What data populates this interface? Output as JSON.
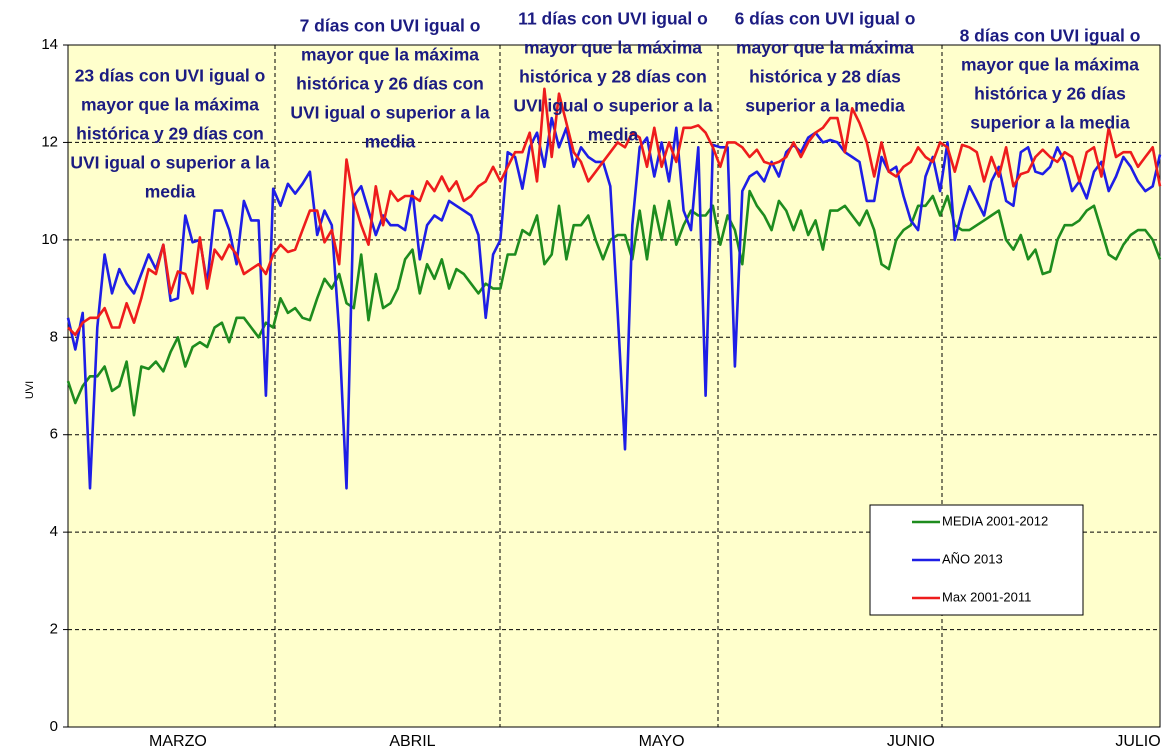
{
  "chart_data": {
    "type": "line",
    "y_label": "UVI",
    "ylim": [
      0,
      14
    ],
    "yticks": [
      0,
      2,
      4,
      6,
      8,
      10,
      12,
      14
    ],
    "grid": true,
    "categories": [
      null,
      null,
      null,
      null,
      null,
      null,
      null,
      null,
      null,
      null,
      null,
      null,
      null,
      null,
      null,
      "MARZO",
      null,
      null,
      null,
      null,
      null,
      null,
      null,
      null,
      null,
      null,
      null,
      null,
      null,
      null,
      null,
      null,
      null,
      null,
      null,
      null,
      null,
      null,
      null,
      null,
      null,
      null,
      null,
      null,
      null,
      null,
      null,
      "ABRIL",
      null,
      null,
      null,
      null,
      null,
      null,
      null,
      null,
      null,
      null,
      null,
      null,
      null,
      null,
      null,
      null,
      null,
      null,
      null,
      null,
      null,
      null,
      null,
      null,
      null,
      null,
      null,
      null,
      null,
      null,
      null,
      null,
      null,
      "MAYO",
      null,
      null,
      null,
      null,
      null,
      null,
      null,
      null,
      null,
      null,
      null,
      null,
      null,
      null,
      null,
      null,
      null,
      null,
      null,
      null,
      null,
      null,
      null,
      null,
      null,
      null,
      null,
      null,
      null,
      null,
      null,
      null,
      null,
      "JUNIO",
      null,
      null,
      null,
      null,
      null,
      null,
      null,
      null,
      null,
      null,
      null,
      null,
      null,
      null,
      null,
      null,
      null,
      null,
      null,
      null,
      null,
      null,
      null,
      null,
      null,
      null,
      null,
      null,
      null,
      null,
      "JULIO",
      null,
      null,
      null
    ],
    "series": [
      {
        "name": "MEDIA 2001-2012",
        "color": "#1e8c1e",
        "values": [
          7.1,
          6.65,
          7.0,
          7.2,
          7.2,
          7.4,
          6.9,
          7.0,
          7.5,
          6.4,
          7.4,
          7.35,
          7.5,
          7.3,
          7.7,
          8.0,
          7.4,
          7.8,
          7.9,
          7.8,
          8.2,
          8.3,
          7.9,
          8.4,
          8.4,
          8.2,
          8.0,
          8.3,
          8.2,
          8.8,
          8.5,
          8.6,
          8.4,
          8.35,
          8.8,
          9.2,
          9.0,
          9.3,
          8.7,
          8.6,
          9.7,
          8.35,
          9.3,
          8.6,
          8.7,
          9.0,
          9.6,
          9.8,
          8.9,
          9.5,
          9.2,
          9.6,
          9.0,
          9.4,
          9.3,
          9.1,
          8.9,
          9.1,
          9.0,
          9.0,
          9.7,
          9.7,
          10.2,
          10.1,
          10.5,
          9.5,
          9.7,
          10.7,
          9.6,
          10.3,
          10.3,
          10.5,
          10.0,
          9.6,
          10.0,
          10.1,
          10.1,
          9.6,
          10.6,
          9.6,
          10.7,
          10.0,
          10.8,
          9.9,
          10.3,
          10.6,
          10.5,
          10.5,
          10.7,
          9.9,
          10.5,
          10.2,
          9.5,
          11.0,
          10.7,
          10.5,
          10.2,
          10.8,
          10.6,
          10.2,
          10.6,
          10.1,
          10.4,
          9.8,
          10.6,
          10.6,
          10.7,
          10.5,
          10.3,
          10.6,
          10.2,
          9.5,
          9.4,
          10.0,
          10.2,
          10.3,
          10.7,
          10.7,
          10.9,
          10.5,
          10.9,
          10.3,
          10.2,
          10.2,
          10.3,
          10.4,
          10.5,
          10.6,
          10.0,
          9.8,
          10.1,
          9.6,
          9.8,
          9.3,
          9.35,
          10.0,
          10.3,
          10.3,
          10.4,
          10.6,
          10.7,
          10.2,
          9.7,
          9.6,
          9.9,
          10.1,
          10.2,
          10.2,
          10.0,
          9.6
        ]
      },
      {
        "name": "AÑO 2013",
        "color": "#1e1ee6",
        "values": [
          8.4,
          7.75,
          8.5,
          4.9,
          8.2,
          9.7,
          8.9,
          9.4,
          9.1,
          8.9,
          9.3,
          9.7,
          9.4,
          9.9,
          8.75,
          8.8,
          10.5,
          9.95,
          10.0,
          9.1,
          10.6,
          10.6,
          10.2,
          9.5,
          10.8,
          10.4,
          10.4,
          6.8,
          11.05,
          10.7,
          11.15,
          10.95,
          11.15,
          11.4,
          10.1,
          10.6,
          10.3,
          8.1,
          4.9,
          10.9,
          11.1,
          10.6,
          10.1,
          10.5,
          10.3,
          10.3,
          10.2,
          11.0,
          9.6,
          10.3,
          10.5,
          10.4,
          10.8,
          10.7,
          10.6,
          10.5,
          10.1,
          8.4,
          9.7,
          10.0,
          11.8,
          11.7,
          11.05,
          11.9,
          12.2,
          11.5,
          12.5,
          11.9,
          12.3,
          11.5,
          11.9,
          11.7,
          11.6,
          11.6,
          11.1,
          8.5,
          5.7,
          10.3,
          11.9,
          12.1,
          11.3,
          12.0,
          11.2,
          12.3,
          10.6,
          10.2,
          11.9,
          6.8,
          11.95,
          11.9,
          11.9,
          7.4,
          11.0,
          11.3,
          11.4,
          11.2,
          11.6,
          11.3,
          11.8,
          11.95,
          11.8,
          12.1,
          12.2,
          12.0,
          12.05,
          12.0,
          11.8,
          11.7,
          11.6,
          10.8,
          10.8,
          11.7,
          11.4,
          11.5,
          10.9,
          10.4,
          10.2,
          11.3,
          11.7,
          11.0,
          12.0,
          10.0,
          10.6,
          11.1,
          10.8,
          10.5,
          11.2,
          11.5,
          10.8,
          10.7,
          11.8,
          11.9,
          11.4,
          11.35,
          11.5,
          11.9,
          11.6,
          11.0,
          11.2,
          10.85,
          11.4,
          11.6,
          11.0,
          11.3,
          11.7,
          11.5,
          11.2,
          11.0,
          11.1,
          11.75
        ]
      },
      {
        "name": "Max 2001-2011",
        "color": "#ee1c1c",
        "values": [
          8.2,
          8.05,
          8.3,
          8.4,
          8.4,
          8.6,
          8.2,
          8.2,
          8.7,
          8.3,
          8.8,
          9.4,
          9.3,
          9.9,
          8.9,
          9.35,
          9.3,
          8.9,
          10.05,
          9.0,
          9.8,
          9.6,
          9.9,
          9.7,
          9.3,
          9.4,
          9.5,
          9.3,
          9.7,
          9.9,
          9.75,
          9.8,
          10.2,
          10.6,
          10.6,
          9.95,
          10.2,
          9.5,
          11.65,
          10.8,
          10.3,
          9.9,
          11.1,
          10.3,
          11.0,
          10.8,
          10.9,
          10.9,
          10.8,
          11.2,
          11.0,
          11.3,
          11.0,
          11.2,
          10.8,
          10.9,
          11.1,
          11.2,
          11.5,
          11.2,
          11.5,
          11.8,
          11.8,
          12.2,
          11.2,
          13.1,
          11.7,
          13.0,
          12.4,
          11.8,
          11.6,
          11.2,
          11.4,
          11.6,
          11.8,
          12.0,
          11.9,
          12.2,
          12.1,
          11.5,
          12.3,
          11.5,
          12.0,
          11.6,
          12.3,
          12.3,
          12.35,
          12.2,
          11.9,
          11.5,
          12.0,
          12.0,
          11.9,
          11.7,
          11.85,
          11.6,
          11.55,
          11.6,
          11.7,
          12.0,
          11.7,
          12.0,
          12.2,
          12.3,
          12.5,
          12.5,
          11.8,
          12.7,
          12.4,
          12.0,
          11.3,
          12.0,
          11.4,
          11.3,
          11.5,
          11.6,
          11.9,
          11.7,
          11.6,
          12.0,
          11.9,
          11.4,
          11.95,
          11.9,
          11.8,
          11.2,
          11.7,
          11.3,
          11.9,
          11.1,
          11.35,
          11.4,
          11.7,
          11.85,
          11.7,
          11.6,
          11.8,
          11.7,
          11.2,
          11.8,
          11.9,
          11.3,
          12.3,
          11.7,
          11.8,
          11.8,
          11.5,
          11.7,
          11.9,
          11.1
        ]
      }
    ],
    "annotations": [
      [
        "23 días con UVI igual o",
        "mayor que la máxima",
        "histórica y 29 días con",
        "UVI igual o superior a la",
        "media"
      ],
      [
        "7 días con UVI igual o",
        "mayor que la máxima",
        "histórica y 26 días con",
        "UVI igual o superior a la",
        "media"
      ],
      [
        "11 días con UVI igual o",
        "mayor que la máxima",
        "histórica y 28 días con",
        "UVI igual o superior a la",
        "media"
      ],
      [
        "6 días con UVI igual o",
        "mayor que la máxima",
        "histórica y 28 días",
        "superior a la media"
      ],
      [
        "8 días  con UVI igual o",
        "mayor que la máxima",
        "histórica y 26 días",
        "superior a la media"
      ]
    ]
  }
}
